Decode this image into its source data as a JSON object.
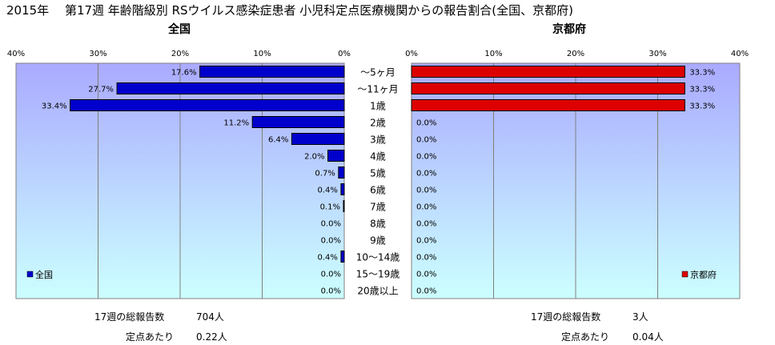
{
  "title": "2015年　 第17週 年齢階級別 RSウイルス感染症患者 小児科定点医療機関からの報告割合(全国、京都府)",
  "chart_data": [
    {
      "type": "bar",
      "orientation": "horizontal",
      "title": "全国",
      "x_direction": "reversed",
      "xlim": [
        0,
        40
      ],
      "xticks": [
        "40%",
        "30%",
        "20%",
        "10%",
        "0%"
      ],
      "categories": [
        "～5ヶ月",
        "～11ヶ月",
        "1歳",
        "2歳",
        "3歳",
        "4歳",
        "5歳",
        "6歳",
        "7歳",
        "8歳",
        "9歳",
        "10～14歳",
        "15～19歳",
        "20歳以上"
      ],
      "series": [
        {
          "name": "全国",
          "color": "#0000cc",
          "values": [
            17.6,
            27.7,
            33.4,
            11.2,
            6.4,
            2.0,
            0.7,
            0.4,
            0.1,
            0.0,
            0.0,
            0.4,
            0.0,
            0.0
          ],
          "labels": [
            "17.6%",
            "27.7%",
            "33.4%",
            "11.2%",
            "6.4%",
            "2.0%",
            "0.7%",
            "0.4%",
            "0.1%",
            "0.0%",
            "0.0%",
            "0.4%",
            "0.0%",
            "0.0%"
          ]
        }
      ],
      "legend": "bottom-left",
      "grid": true
    },
    {
      "type": "bar",
      "orientation": "horizontal",
      "title": "京都府",
      "xlim": [
        0,
        40
      ],
      "xticks": [
        "0%",
        "10%",
        "20%",
        "30%",
        "40%"
      ],
      "categories": [
        "～5ヶ月",
        "～11ヶ月",
        "1歳",
        "2歳",
        "3歳",
        "4歳",
        "5歳",
        "6歳",
        "7歳",
        "8歳",
        "9歳",
        "10～14歳",
        "15～19歳",
        "20歳以上"
      ],
      "series": [
        {
          "name": "京都府",
          "color": "#dd0000",
          "values": [
            33.3,
            33.3,
            33.3,
            0.0,
            0.0,
            0.0,
            0.0,
            0.0,
            0.0,
            0.0,
            0.0,
            0.0,
            0.0,
            0.0
          ],
          "labels": [
            "33.3%",
            "33.3%",
            "33.3%",
            "0.0%",
            "0.0%",
            "0.0%",
            "0.0%",
            "0.0%",
            "0.0%",
            "0.0%",
            "0.0%",
            "0.0%",
            "0.0%",
            "0.0%"
          ]
        }
      ],
      "legend": "bottom-right",
      "grid": true
    }
  ],
  "stats": {
    "national": {
      "total_label": "17週の総報告数",
      "total_value": "704人",
      "per_label": "定点あたり",
      "per_value": "0.22人"
    },
    "kyoto": {
      "total_label": "17週の総報告数",
      "total_value": "3人",
      "per_label": "定点あたり",
      "per_value": "0.04人"
    }
  },
  "colors": {
    "plot_bg_top": "#aaaaff",
    "plot_bg_bottom": "#ccffff",
    "national_bar": "#0000cc",
    "kyoto_bar": "#dd0000"
  }
}
